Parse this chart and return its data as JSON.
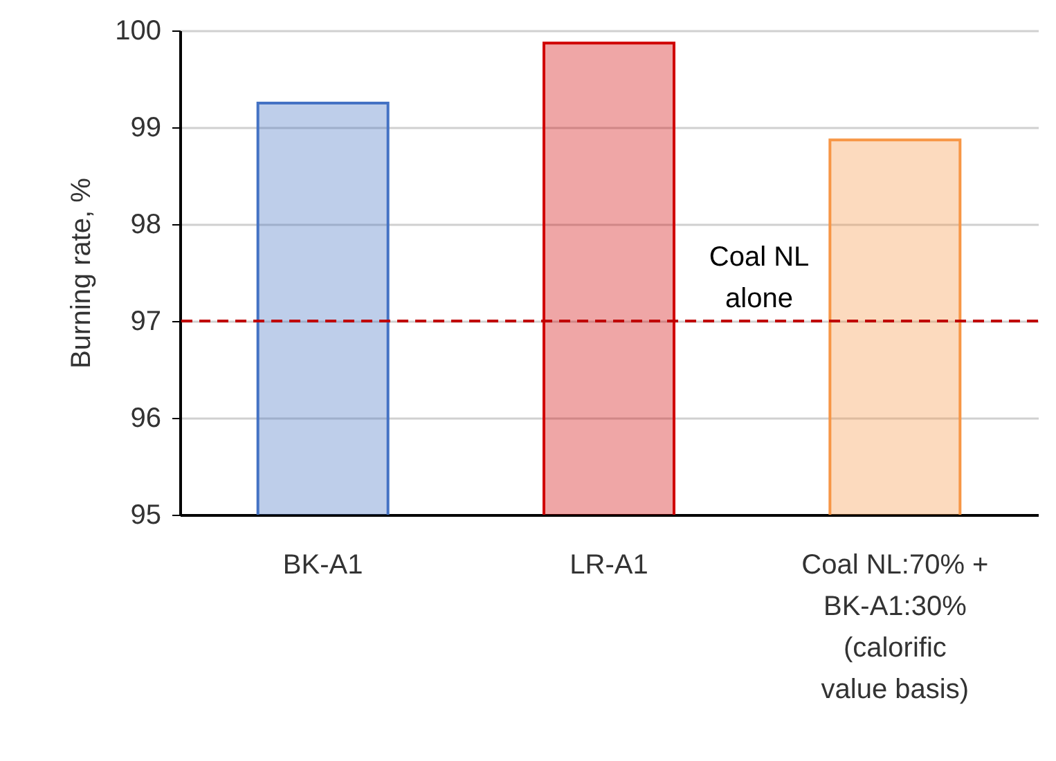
{
  "chart_data": {
    "type": "bar",
    "ylabel": "Burning rate, %",
    "categories": [
      "BK-A1",
      "LR-A1",
      "Coal NL:70% + BK-A1:30% (calorific value basis)"
    ],
    "values": [
      99.25,
      99.87,
      98.87
    ],
    "colors": [
      "#4472c4",
      "#d00000",
      "#f79646"
    ],
    "ylim": [
      95,
      100
    ],
    "yticks": [
      95,
      96,
      97,
      98,
      99,
      100
    ],
    "grid": "y",
    "ref_lines": [
      {
        "axis": "y",
        "value": 97,
        "label": "Coal NL alone",
        "color": "#c00000",
        "line_style": "dashed"
      }
    ]
  }
}
